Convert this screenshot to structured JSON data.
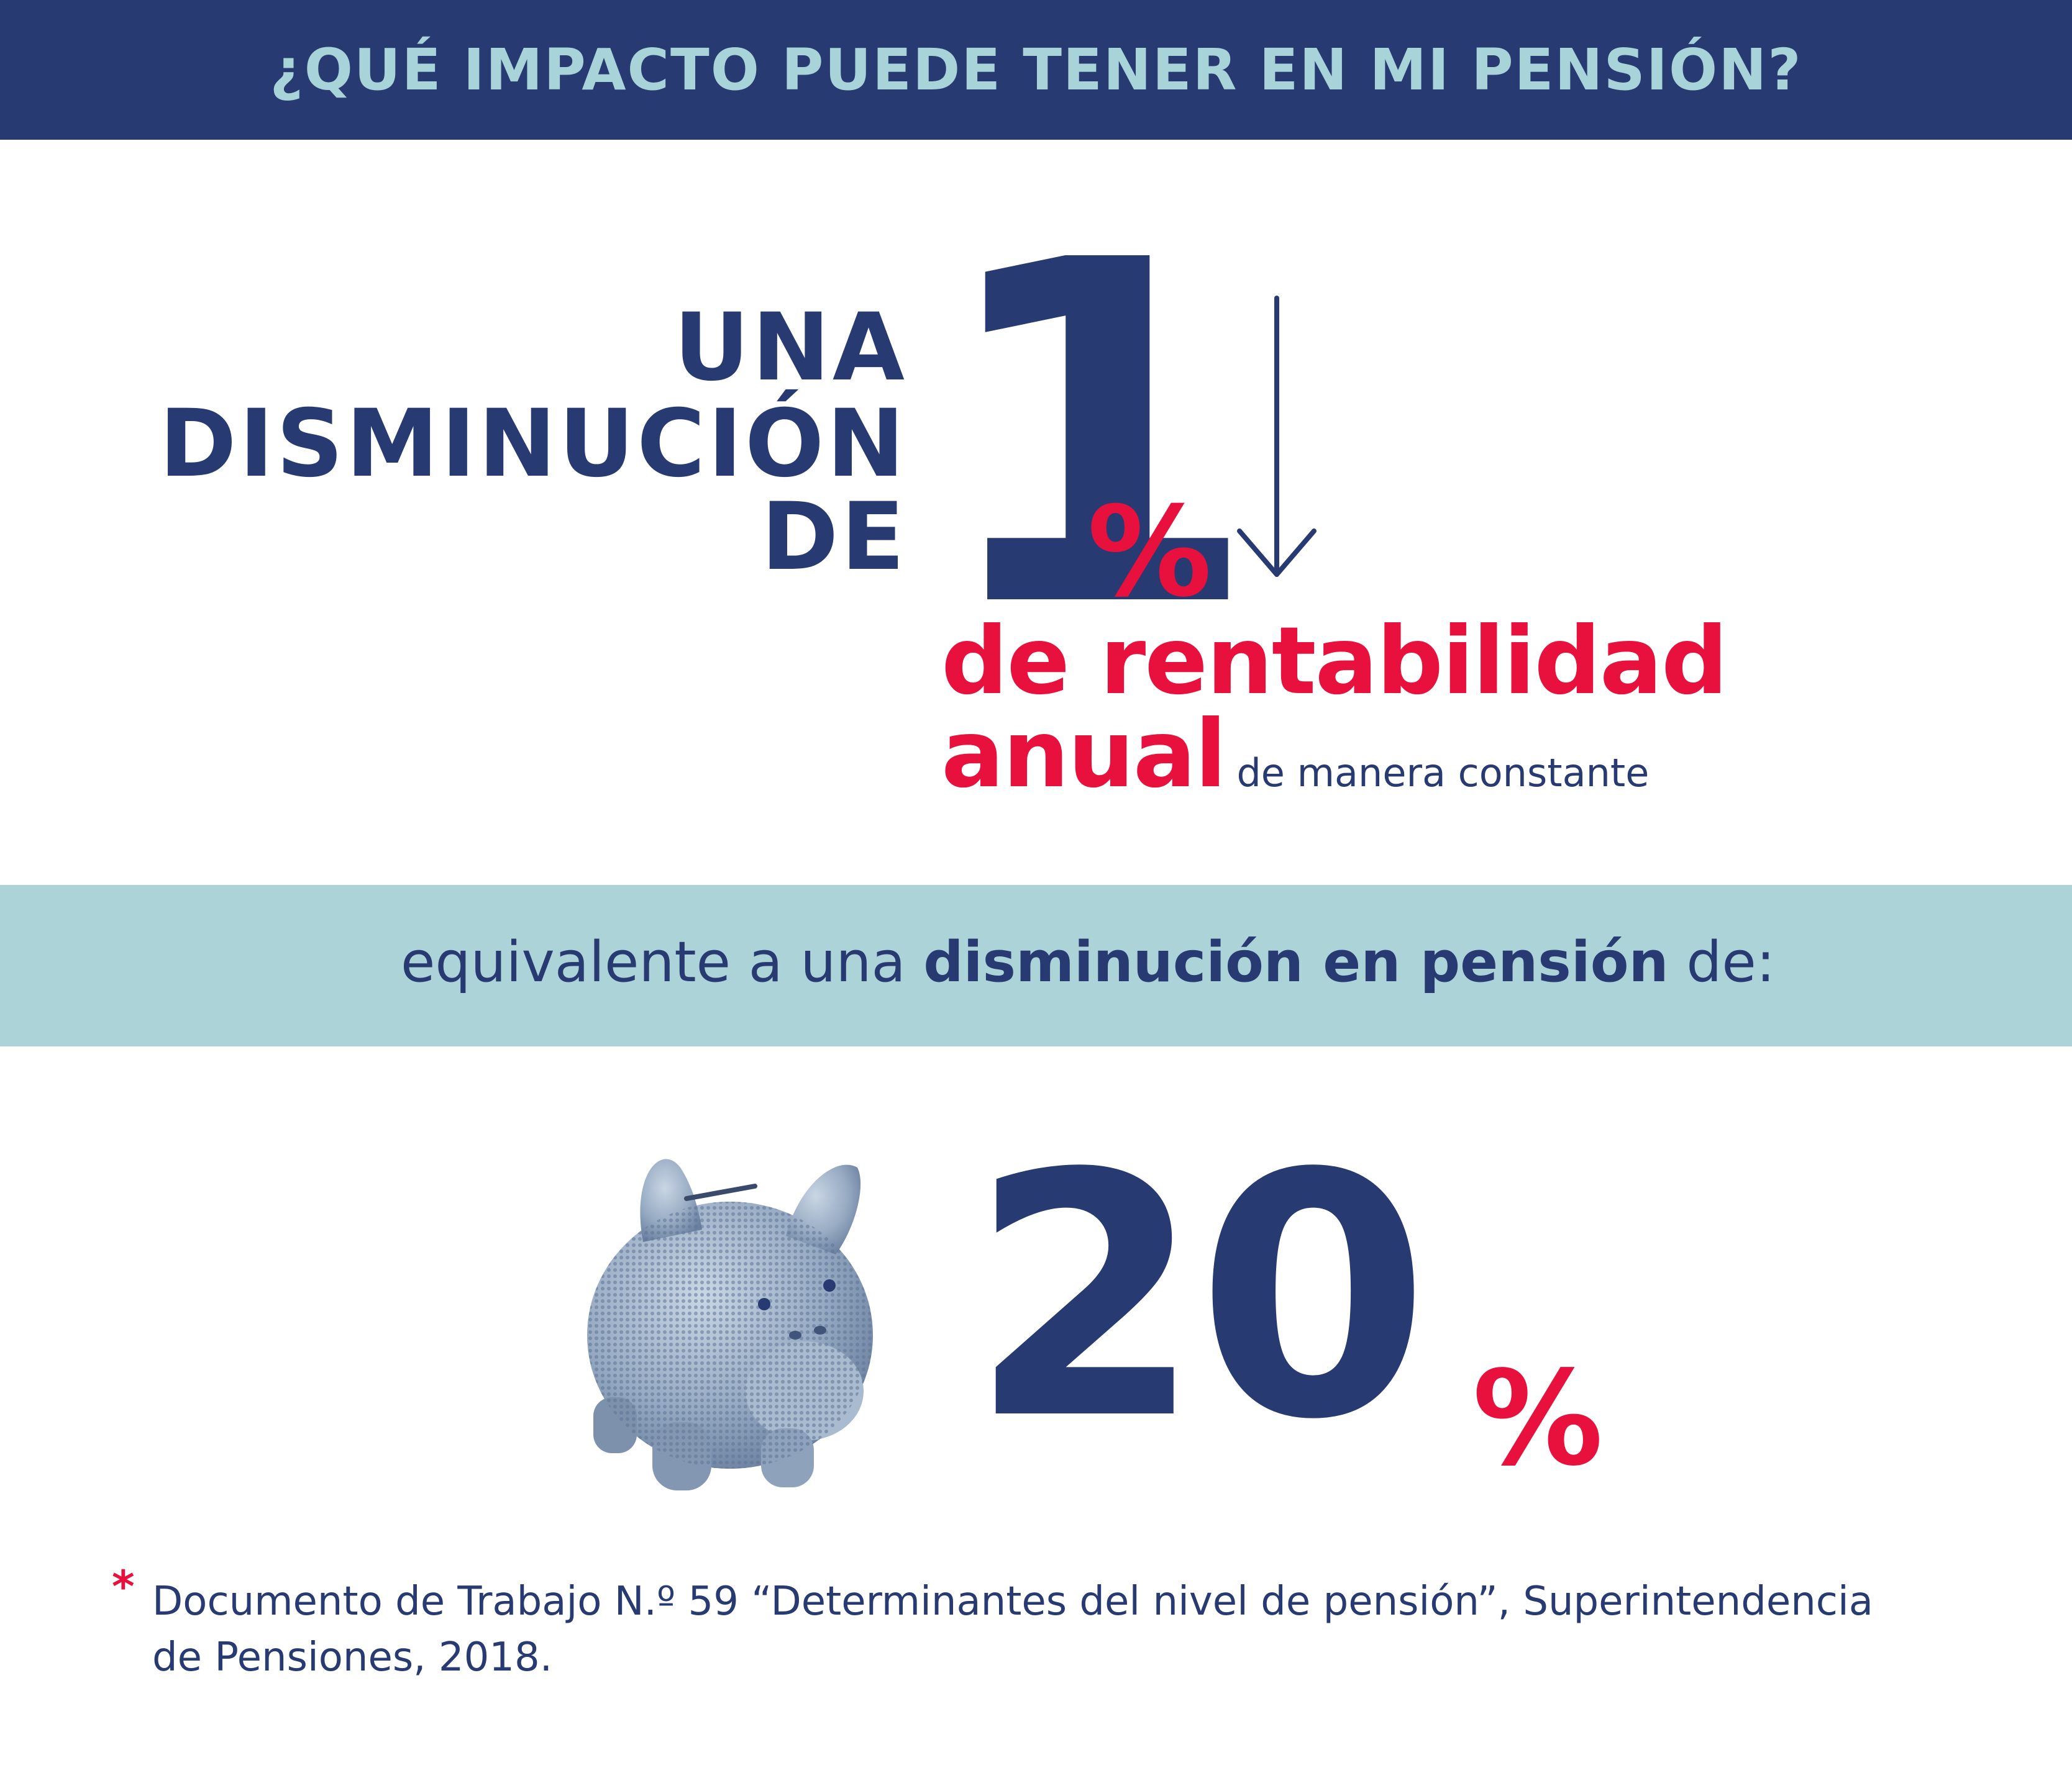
{
  "header": {
    "title": "¿QUÉ IMPACTO PUEDE TENER EN MI PENSIÓN?"
  },
  "headline": {
    "line1": "UNA",
    "line2": "DISMINUCIÓN",
    "line3": "DE",
    "number": "1",
    "percent_sign": "%",
    "rate_line1": "de rentabilidad",
    "rate_line2": "anual",
    "qualifier": "de manera constante",
    "arrow_icon": "down-arrow-icon"
  },
  "band": {
    "prefix": "equivalente a una",
    "emphasis": "disminución en pensión",
    "suffix": "de:"
  },
  "result": {
    "number": "20",
    "percent_sign": "%",
    "image_icon": "piggy-bank-icon"
  },
  "footnote": {
    "marker": "*",
    "line1": "Documento de Trabajo N.º 59 “Determinantes del nivel de pensión”, Superintendencia",
    "line2": "de Pensiones, 2018."
  },
  "colors": {
    "navy": "#283a72",
    "red": "#e8103d",
    "light_blue": "#abd3d8",
    "header_text": "#a8d3d9"
  }
}
